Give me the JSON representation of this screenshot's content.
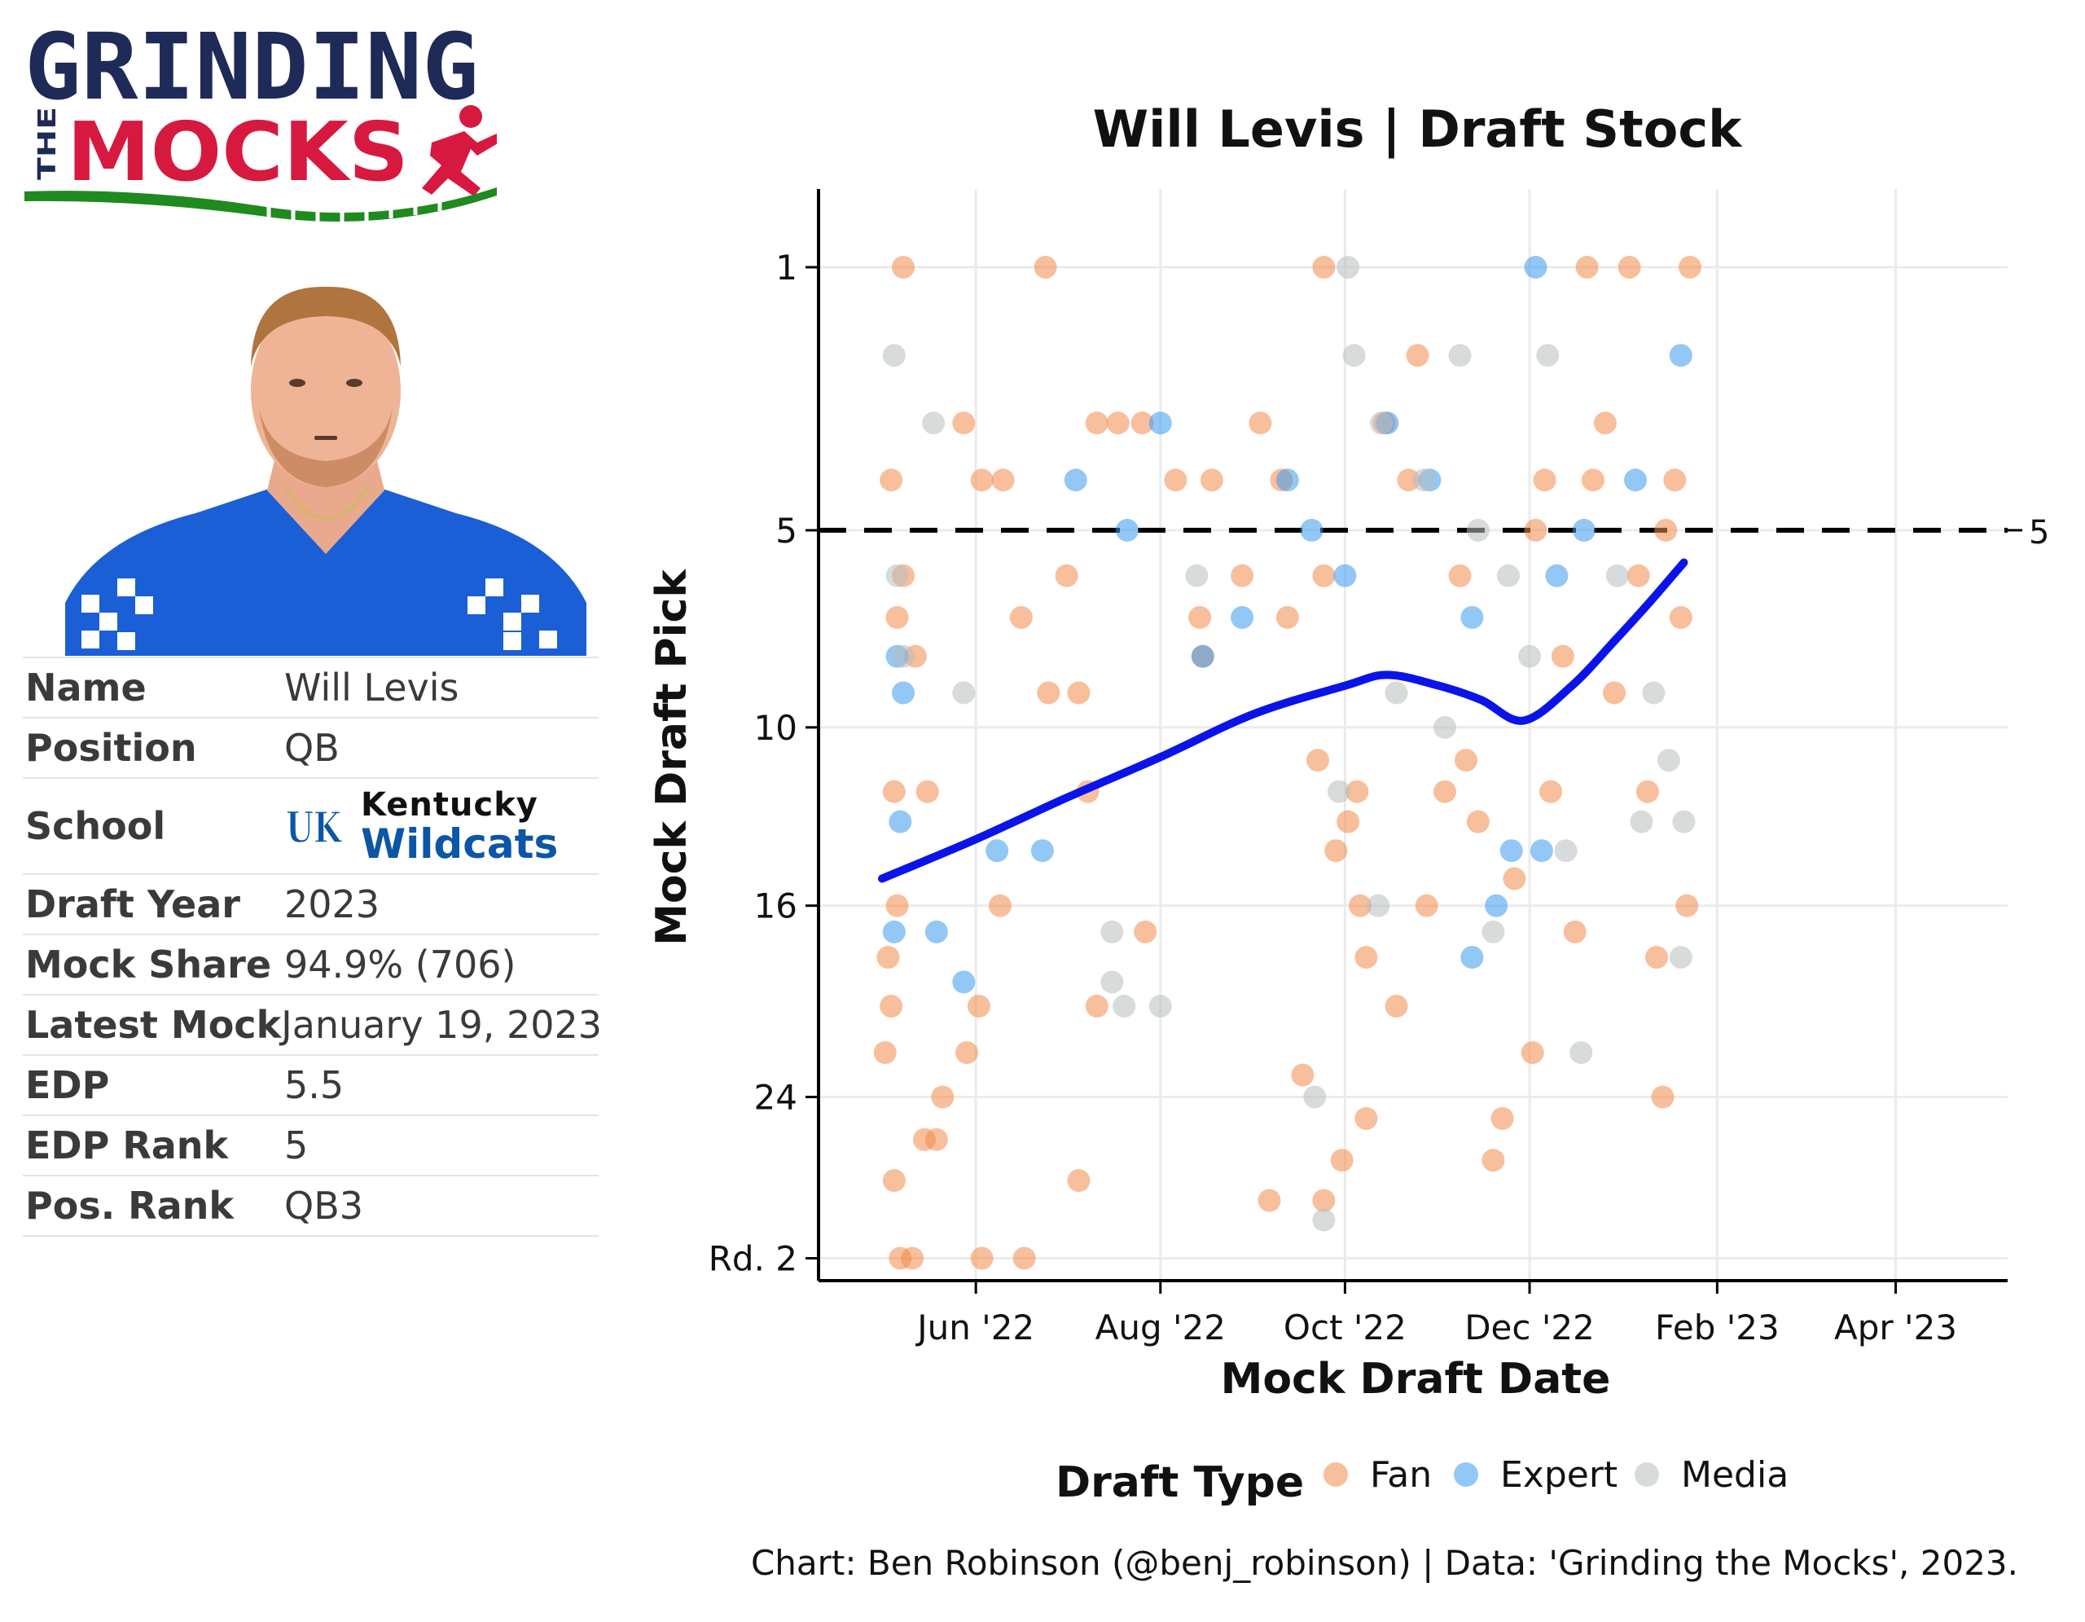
{
  "logo": {
    "text_top": "GRINDING",
    "text_the": "THE",
    "text_bottom": "MOCKS",
    "colors": {
      "navy": "#1e2a57",
      "red": "#d7193f",
      "green": "#1f8a1f"
    }
  },
  "player_photo": {
    "icon": "player-headshot",
    "jersey_color": "#1a5fd6"
  },
  "profile": {
    "rows": [
      {
        "key": "Name",
        "value": "Will Levis"
      },
      {
        "key": "Position",
        "value": "QB"
      },
      {
        "key": "School",
        "value_line1": "Kentucky",
        "value_line2": "Wildcats",
        "logo_text": "UK"
      },
      {
        "key": "Draft Year",
        "value": "2023"
      },
      {
        "key": "Mock Share",
        "value": "94.9% (706)"
      },
      {
        "key": "Latest Mock",
        "value": "January 19, 2023"
      },
      {
        "key": "EDP",
        "value": "5.5"
      },
      {
        "key": "EDP Rank",
        "value": "5"
      },
      {
        "key": "Pos. Rank",
        "value": "QB3"
      }
    ]
  },
  "chart_data": {
    "type": "scatter",
    "title": "Will Levis | Draft Stock",
    "xlabel": "Mock Draft Date",
    "ylabel": "Mock Draft Pick",
    "caption": "Chart: Ben Robinson (@benj_robinson) | Data: 'Grinding the Mocks', 2023.",
    "x_ticks": [
      {
        "date": "2022-06-01",
        "label": "Jun '22"
      },
      {
        "date": "2022-08-01",
        "label": "Aug '22"
      },
      {
        "date": "2022-10-01",
        "label": "Oct '22"
      },
      {
        "date": "2022-12-01",
        "label": "Dec '22"
      },
      {
        "date": "2023-02-01",
        "label": "Feb '23"
      },
      {
        "date": "2023-04-01",
        "label": "Apr '23"
      }
    ],
    "xlim": [
      "2022-04-10",
      "2023-05-08"
    ],
    "y_scale": "sqrt",
    "y_reversed": true,
    "y_ticks": [
      {
        "value": 1,
        "label": "1"
      },
      {
        "value": 5,
        "label": "5"
      },
      {
        "value": 10,
        "label": "10"
      },
      {
        "value": 16,
        "label": "16"
      },
      {
        "value": 24,
        "label": "24"
      },
      {
        "value": 32,
        "label": "Rd. 2"
      }
    ],
    "ylim": [
      0.4,
      33.2
    ],
    "reference_line": {
      "value": 5,
      "label": "5",
      "style": "dashed"
    },
    "legend": {
      "title": "Draft Type",
      "position": "bottom",
      "items": [
        {
          "name": "Fan",
          "color": "#f28a4a"
        },
        {
          "name": "Expert",
          "color": "#3a99ef"
        },
        {
          "name": "Media",
          "color": "#b8bdbf"
        }
      ]
    },
    "trend": {
      "color": "#0a14e8",
      "points": [
        [
          "2022-05-01",
          15.0
        ],
        [
          "2022-06-01",
          13.6
        ],
        [
          "2022-07-01",
          12.2
        ],
        [
          "2022-08-01",
          10.9
        ],
        [
          "2022-09-01",
          9.6
        ],
        [
          "2022-10-01",
          8.8
        ],
        [
          "2022-10-15",
          8.5
        ],
        [
          "2022-11-01",
          8.8
        ],
        [
          "2022-11-15",
          9.2
        ],
        [
          "2022-11-29",
          9.8
        ],
        [
          "2022-12-15",
          8.8
        ],
        [
          "2022-12-29",
          7.6
        ],
        [
          "2023-01-10",
          6.6
        ],
        [
          "2023-01-21",
          5.7
        ]
      ]
    },
    "series": [
      {
        "name": "Fan",
        "points": [
          [
            "2022-05-08",
            1
          ],
          [
            "2022-05-28",
            3
          ],
          [
            "2022-05-04",
            4
          ],
          [
            "2022-05-08",
            6
          ],
          [
            "2022-05-06",
            7
          ],
          [
            "2022-05-12",
            8
          ],
          [
            "2022-05-05",
            12
          ],
          [
            "2022-05-06",
            16
          ],
          [
            "2022-05-03",
            18
          ],
          [
            "2022-05-16",
            12
          ],
          [
            "2022-05-04",
            20
          ],
          [
            "2022-05-02",
            22
          ],
          [
            "2022-05-05",
            28
          ],
          [
            "2022-05-07",
            32
          ],
          [
            "2022-05-11",
            32
          ],
          [
            "2022-05-15",
            26
          ],
          [
            "2022-05-19",
            26
          ],
          [
            "2022-05-21",
            24
          ],
          [
            "2022-05-29",
            22
          ],
          [
            "2022-06-02",
            20
          ],
          [
            "2022-06-09",
            16
          ],
          [
            "2022-06-03",
            32
          ],
          [
            "2022-06-17",
            32
          ],
          [
            "2022-06-03",
            4
          ],
          [
            "2022-06-10",
            4
          ],
          [
            "2022-06-24",
            1
          ],
          [
            "2022-06-16",
            7
          ],
          [
            "2022-06-25",
            9
          ],
          [
            "2022-07-08",
            12
          ],
          [
            "2022-07-11",
            3
          ],
          [
            "2022-07-18",
            3
          ],
          [
            "2022-07-05",
            28
          ],
          [
            "2022-07-01",
            6
          ],
          [
            "2022-07-05",
            9
          ],
          [
            "2022-07-11",
            20
          ],
          [
            "2022-07-26",
            3
          ],
          [
            "2022-07-27",
            17
          ],
          [
            "2022-08-06",
            4
          ],
          [
            "2022-08-14",
            7
          ],
          [
            "2022-08-15",
            8
          ],
          [
            "2022-08-18",
            4
          ],
          [
            "2022-08-28",
            6
          ],
          [
            "2022-09-03",
            3
          ],
          [
            "2022-09-06",
            29
          ],
          [
            "2022-09-10",
            4
          ],
          [
            "2022-09-12",
            7
          ],
          [
            "2022-09-17",
            23
          ],
          [
            "2022-09-24",
            1
          ],
          [
            "2022-09-24",
            6
          ],
          [
            "2022-09-24",
            29
          ],
          [
            "2022-09-28",
            14
          ],
          [
            "2022-09-30",
            27
          ],
          [
            "2022-10-08",
            25
          ],
          [
            "2022-09-22",
            11
          ],
          [
            "2022-10-14",
            3
          ],
          [
            "2022-10-05",
            12
          ],
          [
            "2022-10-02",
            13
          ],
          [
            "2022-10-06",
            16
          ],
          [
            "2022-10-08",
            18
          ],
          [
            "2022-10-18",
            20
          ],
          [
            "2022-10-22",
            4
          ],
          [
            "2022-10-25",
            2
          ],
          [
            "2022-10-28",
            16
          ],
          [
            "2022-11-03",
            12
          ],
          [
            "2022-11-08",
            6
          ],
          [
            "2022-11-10",
            11
          ],
          [
            "2022-11-14",
            13
          ],
          [
            "2022-11-19",
            27
          ],
          [
            "2022-11-22",
            25
          ],
          [
            "2022-11-26",
            15
          ],
          [
            "2022-12-02",
            22
          ],
          [
            "2022-12-06",
            4
          ],
          [
            "2022-12-03",
            5
          ],
          [
            "2022-12-08",
            12
          ],
          [
            "2022-12-12",
            8
          ],
          [
            "2022-12-16",
            17
          ],
          [
            "2022-12-20",
            1
          ],
          [
            "2022-12-22",
            4
          ],
          [
            "2022-12-26",
            3
          ],
          [
            "2022-12-29",
            9
          ],
          [
            "2023-01-03",
            1
          ],
          [
            "2023-01-06",
            6
          ],
          [
            "2023-01-09",
            12
          ],
          [
            "2023-01-12",
            18
          ],
          [
            "2023-01-15",
            5
          ],
          [
            "2023-01-18",
            4
          ],
          [
            "2023-01-20",
            7
          ],
          [
            "2023-01-22",
            16
          ],
          [
            "2023-01-23",
            1
          ],
          [
            "2023-01-14",
            24
          ]
        ]
      },
      {
        "name": "Expert",
        "points": [
          [
            "2022-05-06",
            8
          ],
          [
            "2022-05-08",
            9
          ],
          [
            "2022-05-07",
            13
          ],
          [
            "2022-05-05",
            17
          ],
          [
            "2022-05-19",
            17
          ],
          [
            "2022-05-28",
            19
          ],
          [
            "2022-06-08",
            14
          ],
          [
            "2022-06-23",
            14
          ],
          [
            "2022-07-04",
            4
          ],
          [
            "2022-07-21",
            5
          ],
          [
            "2022-08-01",
            3
          ],
          [
            "2022-08-15",
            8
          ],
          [
            "2022-08-28",
            7
          ],
          [
            "2022-09-12",
            4
          ],
          [
            "2022-09-20",
            5
          ],
          [
            "2022-10-01",
            6
          ],
          [
            "2022-10-15",
            3
          ],
          [
            "2022-10-29",
            4
          ],
          [
            "2022-11-12",
            7
          ],
          [
            "2022-11-25",
            14
          ],
          [
            "2022-12-03",
            1
          ],
          [
            "2022-12-10",
            6
          ],
          [
            "2022-12-19",
            5
          ],
          [
            "2023-01-05",
            4
          ],
          [
            "2023-01-20",
            2
          ],
          [
            "2022-11-20",
            16
          ],
          [
            "2022-11-12",
            18
          ],
          [
            "2022-12-05",
            14
          ]
        ]
      },
      {
        "name": "Media",
        "points": [
          [
            "2022-05-05",
            2
          ],
          [
            "2022-05-18",
            3
          ],
          [
            "2022-05-06",
            6
          ],
          [
            "2022-05-08",
            8
          ],
          [
            "2022-05-28",
            9
          ],
          [
            "2022-07-16",
            17
          ],
          [
            "2022-07-20",
            20
          ],
          [
            "2022-08-01",
            20
          ],
          [
            "2022-07-16",
            19
          ],
          [
            "2022-09-24",
            30
          ],
          [
            "2022-09-21",
            24
          ],
          [
            "2022-08-13",
            6
          ],
          [
            "2022-09-29",
            12
          ],
          [
            "2022-10-02",
            1
          ],
          [
            "2022-10-04",
            2
          ],
          [
            "2022-10-12",
            16
          ],
          [
            "2022-10-13",
            3
          ],
          [
            "2022-10-18",
            9
          ],
          [
            "2022-10-27",
            4
          ],
          [
            "2022-11-03",
            10
          ],
          [
            "2022-11-08",
            2
          ],
          [
            "2022-11-14",
            5
          ],
          [
            "2022-11-19",
            17
          ],
          [
            "2022-11-24",
            6
          ],
          [
            "2022-12-01",
            8
          ],
          [
            "2022-12-07",
            2
          ],
          [
            "2022-12-13",
            14
          ],
          [
            "2022-12-18",
            22
          ],
          [
            "2023-01-07",
            13
          ],
          [
            "2023-01-16",
            11
          ],
          [
            "2023-01-21",
            13
          ],
          [
            "2023-01-20",
            18
          ],
          [
            "2023-01-11",
            9
          ],
          [
            "2022-12-30",
            6
          ]
        ]
      }
    ]
  }
}
